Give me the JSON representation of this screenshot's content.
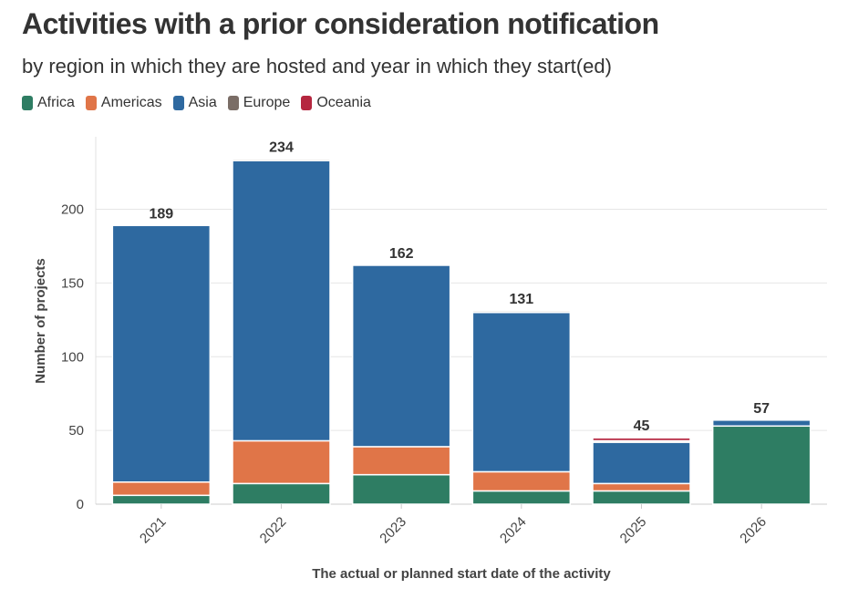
{
  "chart_data": {
    "type": "bar",
    "stacked": true,
    "title": "Activities with a prior consideration notification",
    "subtitle": "by region in which they are hosted and year in which they start(ed)",
    "xlabel": "The actual or planned start date of the activity",
    "ylabel": "Number of projects",
    "categories": [
      "2021",
      "2022",
      "2023",
      "2024",
      "2025",
      "2026"
    ],
    "series": [
      {
        "name": "Africa",
        "color": "#2e7d63",
        "values": [
          6,
          14,
          20,
          9,
          9,
          53
        ]
      },
      {
        "name": "Americas",
        "color": "#e07548",
        "values": [
          9,
          29,
          19,
          13,
          5,
          0
        ]
      },
      {
        "name": "Asia",
        "color": "#2e69a0",
        "values": [
          174,
          190,
          123,
          108,
          28,
          4
        ]
      },
      {
        "name": "Europe",
        "color": "#7a6d66",
        "values": [
          0,
          1,
          0,
          1,
          1,
          0
        ]
      },
      {
        "name": "Oceania",
        "color": "#b5263f",
        "values": [
          0,
          0,
          0,
          0,
          2,
          0
        ]
      }
    ],
    "totals": [
      "189",
      "234",
      "162",
      "131",
      "45",
      "57"
    ],
    "ylim": [
      0,
      250
    ],
    "yticks": [
      "0",
      "50",
      "100",
      "150",
      "200"
    ],
    "grid": true,
    "legend_position": "top-left"
  }
}
